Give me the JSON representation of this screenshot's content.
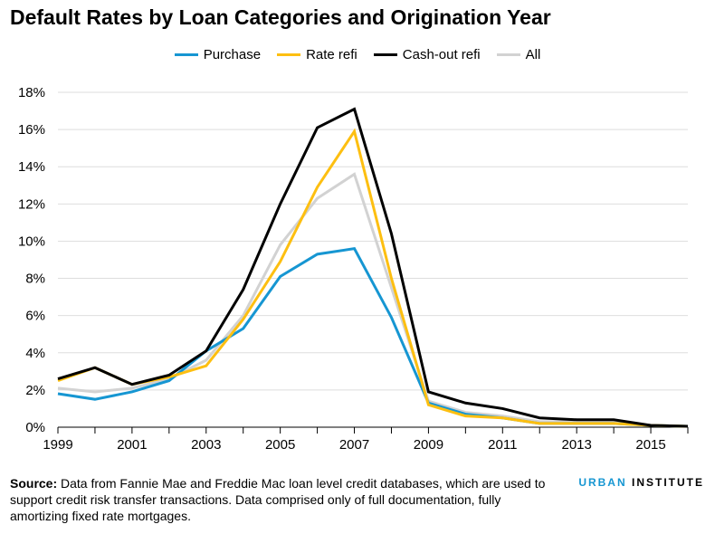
{
  "chart_data": {
    "type": "line",
    "title": "Default Rates by Loan Categories and Origination Year",
    "xlabel": "",
    "ylabel": "",
    "x": [
      1999,
      2000,
      2001,
      2002,
      2003,
      2004,
      2005,
      2006,
      2007,
      2008,
      2009,
      2010,
      2011,
      2012,
      2013,
      2014,
      2015,
      2016
    ],
    "xlim": [
      1999,
      2016
    ],
    "ylim": [
      0,
      18
    ],
    "yticks": [
      0,
      2,
      4,
      6,
      8,
      10,
      12,
      14,
      16,
      18
    ],
    "ytick_labels": [
      "0%",
      "2%",
      "4%",
      "6%",
      "8%",
      "10%",
      "12%",
      "14%",
      "16%",
      "18%"
    ],
    "xticks": [
      1999,
      2000,
      2001,
      2002,
      2003,
      2004,
      2005,
      2006,
      2007,
      2008,
      2009,
      2010,
      2011,
      2012,
      2013,
      2014,
      2015,
      2016
    ],
    "xtick_labels": [
      "1999",
      "2001",
      "2003",
      "2005",
      "2007",
      "2009",
      "2011",
      "2013",
      "2015"
    ],
    "xtick_label_years": [
      1999,
      2001,
      2003,
      2005,
      2007,
      2009,
      2011,
      2013,
      2015
    ],
    "grid": true,
    "legend_position": "top-center",
    "series": [
      {
        "name": "Purchase",
        "color": "#1696d2",
        "values": [
          1.8,
          1.5,
          1.9,
          2.5,
          4.1,
          5.3,
          8.1,
          9.3,
          9.6,
          5.9,
          1.3,
          0.7,
          0.5,
          0.2,
          0.2,
          0.2,
          0.1,
          0.05
        ]
      },
      {
        "name": "Rate refi",
        "color": "#fdbf11",
        "values": [
          2.5,
          3.2,
          2.3,
          2.7,
          3.3,
          5.8,
          8.9,
          12.9,
          15.9,
          8.0,
          1.2,
          0.6,
          0.5,
          0.2,
          0.2,
          0.2,
          0.1,
          0.05
        ]
      },
      {
        "name": "Cash-out refi",
        "color": "#000000",
        "values": [
          2.6,
          3.2,
          2.3,
          2.8,
          4.1,
          7.4,
          12.0,
          16.1,
          17.1,
          10.4,
          1.9,
          1.3,
          1.0,
          0.5,
          0.4,
          0.4,
          0.1,
          0.05
        ]
      },
      {
        "name": "All",
        "color": "#d2d2d2",
        "values": [
          2.1,
          1.9,
          2.1,
          2.6,
          3.6,
          6.0,
          9.8,
          12.3,
          13.6,
          7.5,
          1.4,
          0.8,
          0.6,
          0.3,
          0.3,
          0.3,
          0.1,
          0.05
        ]
      }
    ]
  },
  "footer": {
    "source_label": "Source:",
    "source_text": " Data from Fannie Mae and Freddie Mac loan level credit databases, which are used to support credit risk transfer transactions. Data comprised only of full documentation, fully amortizing fixed rate mortgages.",
    "logo_part1": "URBAN",
    "logo_part2": " INSTITUTE"
  }
}
